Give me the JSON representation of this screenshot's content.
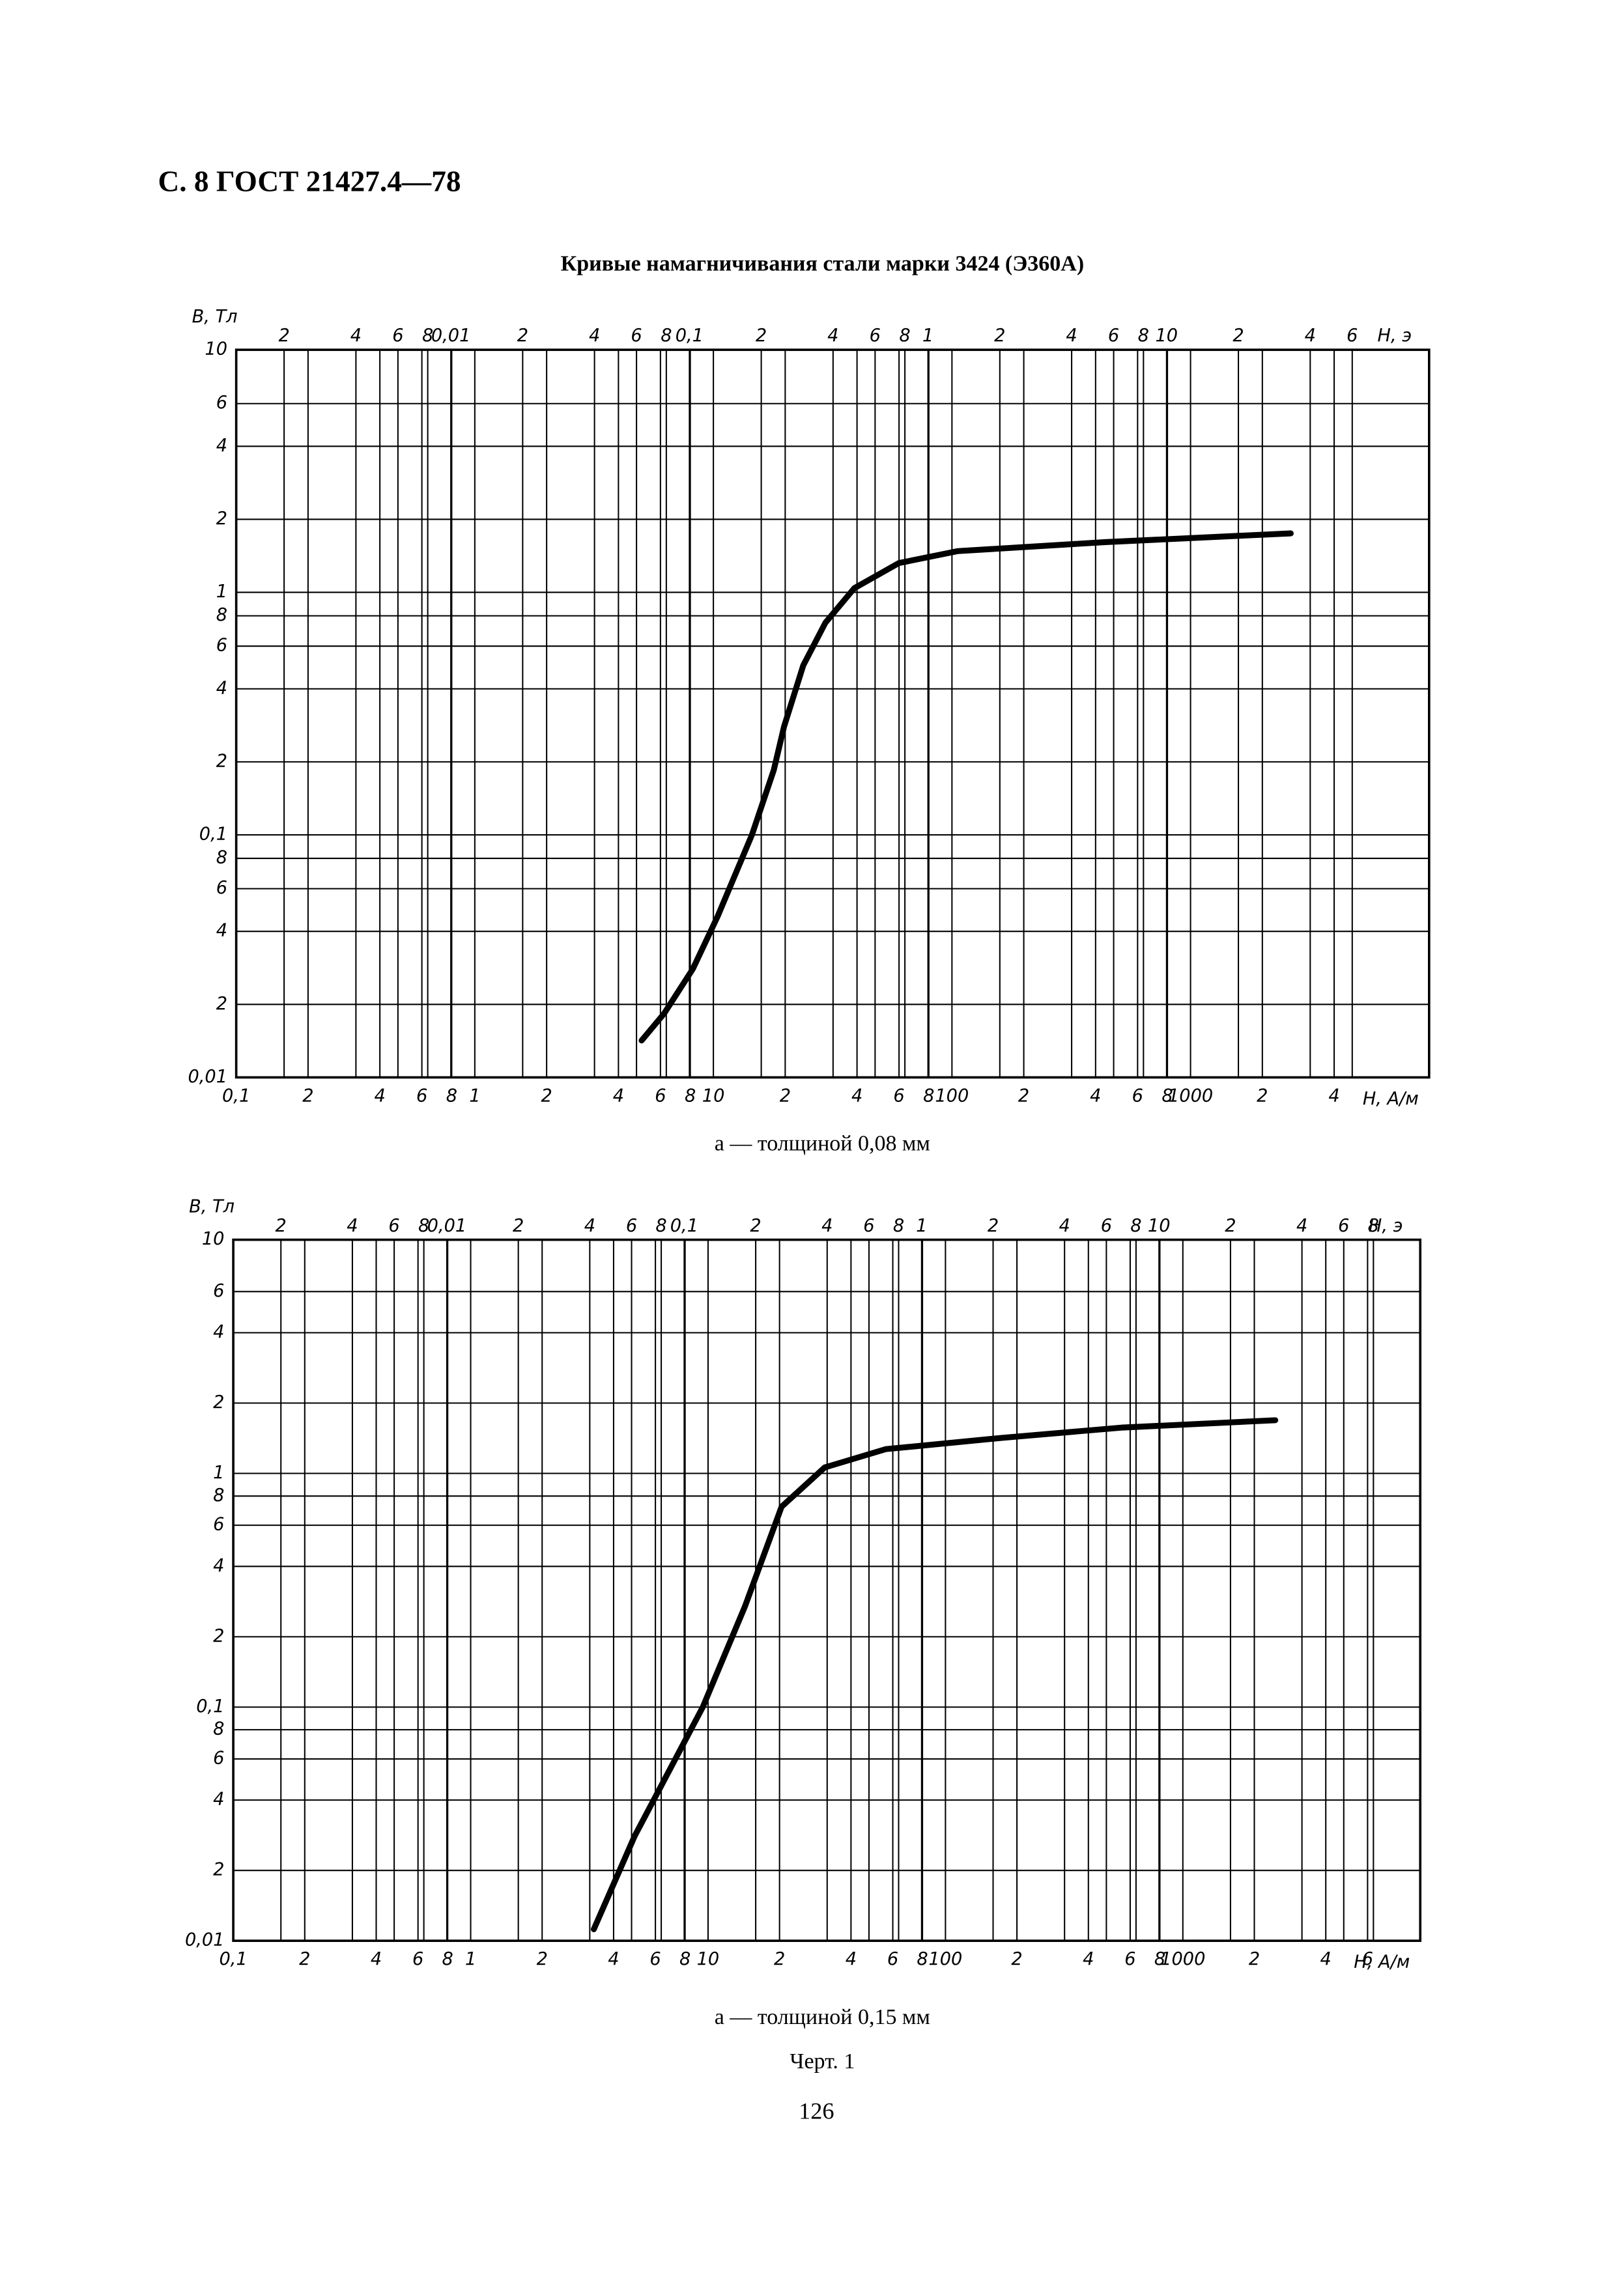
{
  "header": "С. 8 ГОСТ 21427.4—78",
  "title": "Кривые намагничивания стали марки 3424 (Э360А)",
  "chart_data": [
    {
      "type": "line",
      "caption": "а — толщиной 0,08 мм",
      "y_label": "В, Тл",
      "x_label": "H, А/м",
      "x2_label": "H, э",
      "x_scale": "log",
      "y_scale": "log",
      "grid": true,
      "color": "#000000",
      "xlim": [
        0.1,
        10000
      ],
      "x2lim": [
        0.00126,
        126
      ],
      "ylim": [
        0.01,
        10
      ],
      "xticks": [
        {
          "value": 0.1,
          "label": "0,1"
        },
        {
          "value": 0.2,
          "label": "2"
        },
        {
          "value": 0.4,
          "label": "4"
        },
        {
          "value": 0.6,
          "label": "6"
        },
        {
          "value": 0.8,
          "label": "8"
        },
        1,
        2,
        4,
        6,
        8,
        10,
        {
          "value": 20,
          "label": "2"
        },
        {
          "value": 40,
          "label": "4"
        },
        {
          "value": 60,
          "label": "6"
        },
        {
          "value": 80,
          "label": "8"
        },
        100,
        {
          "value": 200,
          "label": "2"
        },
        {
          "value": 400,
          "label": "4"
        },
        {
          "value": 600,
          "label": "6"
        },
        {
          "value": 800,
          "label": "8"
        },
        1000,
        {
          "value": 2000,
          "label": "2"
        },
        {
          "value": 4000,
          "label": "4"
        }
      ],
      "x2ticks": [
        {
          "value": 0.002,
          "label": "2"
        },
        {
          "value": 0.004,
          "label": "4"
        },
        {
          "value": 0.006,
          "label": "6"
        },
        {
          "value": 0.008,
          "label": "8"
        },
        {
          "value": 0.01,
          "label": "0,01"
        },
        {
          "value": 0.02,
          "label": "2"
        },
        {
          "value": 0.04,
          "label": "4"
        },
        {
          "value": 0.06,
          "label": "6"
        },
        {
          "value": 0.08,
          "label": "8"
        },
        {
          "value": 0.1,
          "label": "0,1"
        },
        {
          "value": 0.2,
          "label": "2"
        },
        {
          "value": 0.4,
          "label": "4"
        },
        {
          "value": 0.6,
          "label": "6"
        },
        {
          "value": 0.8,
          "label": "8"
        },
        1,
        2,
        4,
        6,
        8,
        10,
        {
          "value": 20,
          "label": "2"
        },
        {
          "value": 40,
          "label": "4"
        },
        {
          "value": 60,
          "label": "6"
        }
      ],
      "yticks": [
        {
          "value": 0.01,
          "label": "0,01"
        },
        {
          "value": 0.02,
          "label": "2"
        },
        {
          "value": 0.04,
          "label": "4"
        },
        {
          "value": 0.06,
          "label": "6"
        },
        {
          "value": 0.08,
          "label": "8"
        },
        {
          "value": 0.1,
          "label": "0,1"
        },
        {
          "value": 0.2,
          "label": "2"
        },
        {
          "value": 0.4,
          "label": "4"
        },
        {
          "value": 0.6,
          "label": "6"
        },
        {
          "value": 0.8,
          "label": "8"
        },
        1,
        2,
        4,
        6,
        10
      ],
      "x": [
        5.0,
        6.2,
        8.2,
        10.4,
        14.5,
        17.9,
        19.8,
        23.8,
        29.5,
        39,
        60,
        106,
        440,
        2630
      ],
      "values": [
        0.0142,
        0.0183,
        0.028,
        0.046,
        0.1,
        0.185,
        0.28,
        0.5,
        0.75,
        1.04,
        1.32,
        1.48,
        1.61,
        1.75
      ]
    },
    {
      "type": "line",
      "caption": "а — толщиной 0,15 мм",
      "y_label": "В, Тл",
      "x_label": "H, А/м",
      "x2_label": "H, э",
      "x_scale": "log",
      "y_scale": "log",
      "grid": true,
      "color": "#000000",
      "xlim": [
        0.1,
        10000
      ],
      "x2lim": [
        0.00126,
        126
      ],
      "ylim": [
        0.01,
        10
      ],
      "xticks": [
        {
          "value": 0.1,
          "label": "0,1"
        },
        {
          "value": 0.2,
          "label": "2"
        },
        {
          "value": 0.4,
          "label": "4"
        },
        {
          "value": 0.6,
          "label": "6"
        },
        {
          "value": 0.8,
          "label": "8"
        },
        1,
        2,
        4,
        6,
        8,
        10,
        {
          "value": 20,
          "label": "2"
        },
        {
          "value": 40,
          "label": "4"
        },
        {
          "value": 60,
          "label": "6"
        },
        {
          "value": 80,
          "label": "8"
        },
        100,
        {
          "value": 200,
          "label": "2"
        },
        {
          "value": 400,
          "label": "4"
        },
        {
          "value": 600,
          "label": "6"
        },
        {
          "value": 800,
          "label": "8"
        },
        1000,
        {
          "value": 2000,
          "label": "2"
        },
        {
          "value": 4000,
          "label": "4"
        },
        {
          "value": 6000,
          "label": "6"
        }
      ],
      "x2ticks": [
        {
          "value": 0.002,
          "label": "2"
        },
        {
          "value": 0.004,
          "label": "4"
        },
        {
          "value": 0.006,
          "label": "6"
        },
        {
          "value": 0.008,
          "label": "8"
        },
        {
          "value": 0.01,
          "label": "0,01"
        },
        {
          "value": 0.02,
          "label": "2"
        },
        {
          "value": 0.04,
          "label": "4"
        },
        {
          "value": 0.06,
          "label": "6"
        },
        {
          "value": 0.08,
          "label": "8"
        },
        {
          "value": 0.1,
          "label": "0,1"
        },
        {
          "value": 0.2,
          "label": "2"
        },
        {
          "value": 0.4,
          "label": "4"
        },
        {
          "value": 0.6,
          "label": "6"
        },
        {
          "value": 0.8,
          "label": "8"
        },
        1,
        2,
        4,
        6,
        8,
        10,
        {
          "value": 20,
          "label": "2"
        },
        {
          "value": 40,
          "label": "4"
        },
        {
          "value": 60,
          "label": "6"
        },
        {
          "value": 80,
          "label": "8"
        }
      ],
      "yticks": [
        {
          "value": 0.01,
          "label": "0,01"
        },
        {
          "value": 0.02,
          "label": "2"
        },
        {
          "value": 0.04,
          "label": "4"
        },
        {
          "value": 0.06,
          "label": "6"
        },
        {
          "value": 0.08,
          "label": "8"
        },
        {
          "value": 0.1,
          "label": "0,1"
        },
        {
          "value": 0.2,
          "label": "2"
        },
        {
          "value": 0.4,
          "label": "4"
        },
        {
          "value": 0.6,
          "label": "6"
        },
        {
          "value": 0.8,
          "label": "8"
        },
        1,
        2,
        4,
        6,
        10
      ],
      "x": [
        3.3,
        4.9,
        9.5,
        14.3,
        20.4,
        31,
        56,
        174,
        550,
        2450
      ],
      "values": [
        0.0112,
        0.028,
        0.1,
        0.27,
        0.72,
        1.06,
        1.27,
        1.42,
        1.57,
        1.69
      ]
    }
  ],
  "figure_label": "Черт. 1",
  "page_number": "126"
}
